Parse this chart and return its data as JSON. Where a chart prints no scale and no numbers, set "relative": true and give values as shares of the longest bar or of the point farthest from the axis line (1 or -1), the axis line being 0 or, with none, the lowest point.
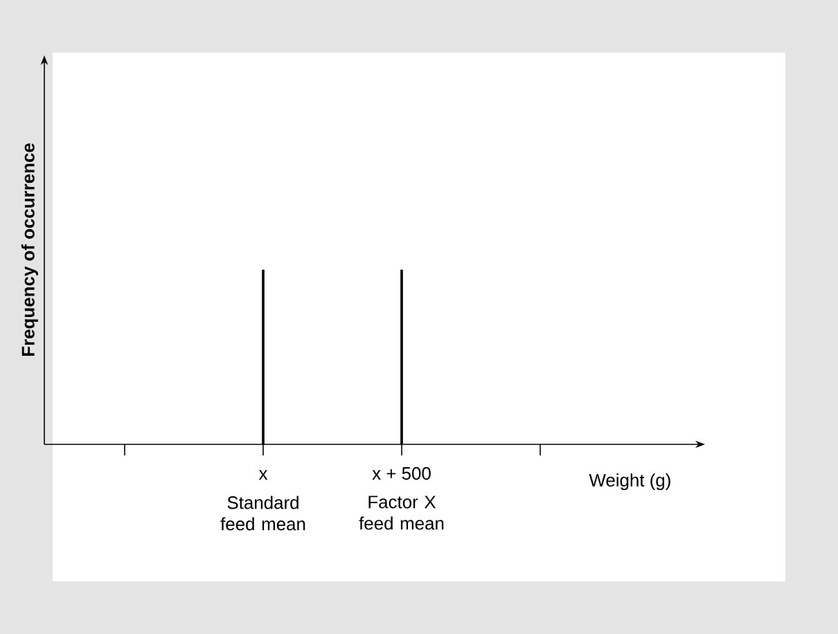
{
  "chart_data": {
    "type": "bar",
    "relative": true,
    "xlabel": "Weight (g)",
    "ylabel": "Frequency of occurrence",
    "categories": [
      null,
      "x",
      "x + 500",
      null
    ],
    "values": [
      null,
      1,
      1,
      null
    ],
    "color": "#000000",
    "annotations": [
      "Standard feed mean",
      "Factor X feed mean"
    ]
  }
}
